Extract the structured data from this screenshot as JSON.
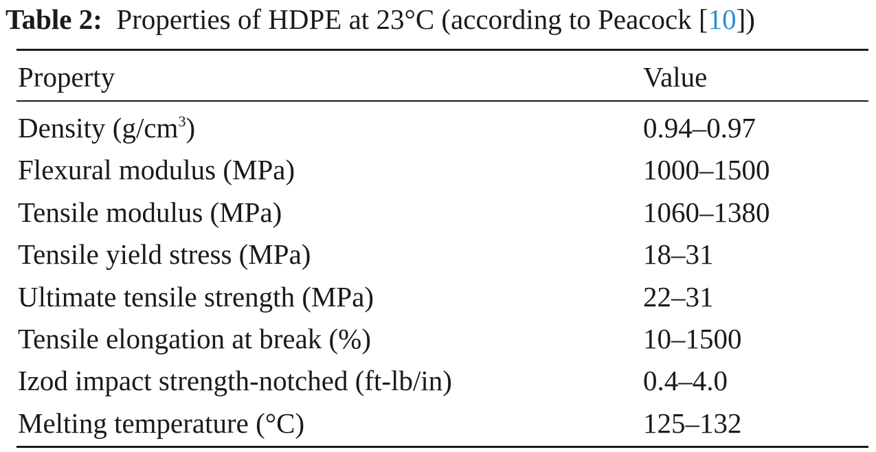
{
  "caption": {
    "label": "Table 2:",
    "text_before_ref": "Properties of HDPE at 23°C (according to Peacock [",
    "ref": "10",
    "text_after_ref": "])"
  },
  "table": {
    "headers": {
      "property": "Property",
      "value": "Value"
    },
    "rows": [
      {
        "property": "Density (g/cm",
        "superscript": "3",
        "property_suffix": ")",
        "value": "0.94–0.97"
      },
      {
        "property": "Flexural modulus (MPa)",
        "value": "1000–1500"
      },
      {
        "property": "Tensile modulus (MPa)",
        "value": "1060–1380"
      },
      {
        "property": "Tensile yield stress (MPa)",
        "value": "18–31"
      },
      {
        "property": "Ultimate tensile strength (MPa)",
        "value": "22–31"
      },
      {
        "property": "Tensile elongation at break (%)",
        "value": "10–1500"
      },
      {
        "property": "Izod impact strength-notched (ft-lb/in)",
        "value": "0.4–4.0"
      },
      {
        "property": "Melting temperature (°C)",
        "value": "125–132"
      }
    ]
  }
}
